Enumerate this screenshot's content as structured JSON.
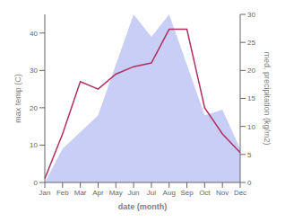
{
  "chart_data": {
    "type": "line",
    "xlabel": "date (month)",
    "ylabel": "max temp (C)",
    "y2label": "med. precipitation (kg/m2)",
    "categories": [
      "Jan",
      "Feb",
      "Mar",
      "Apr",
      "May",
      "Jun",
      "Jul",
      "Aug",
      "Sep",
      "Oct",
      "Nov",
      "Dec"
    ],
    "series": [
      {
        "type": "area",
        "axis": "y2",
        "color": "#c8cef5",
        "values": [
          0,
          6,
          9,
          12,
          21,
          30,
          26,
          30,
          21,
          12,
          13,
          6
        ]
      },
      {
        "type": "line",
        "color": "#b03060",
        "values": [
          1,
          13,
          27,
          25,
          29,
          31,
          32,
          41,
          41,
          20,
          13,
          8
        ]
      }
    ],
    "ylim": [
      0,
      45
    ],
    "yticks": [
      0,
      10,
      20,
      30,
      40
    ],
    "y2lim": [
      0,
      30
    ],
    "y2ticks": [
      0,
      5,
      10,
      15,
      20,
      25,
      30
    ],
    "grid": false
  }
}
